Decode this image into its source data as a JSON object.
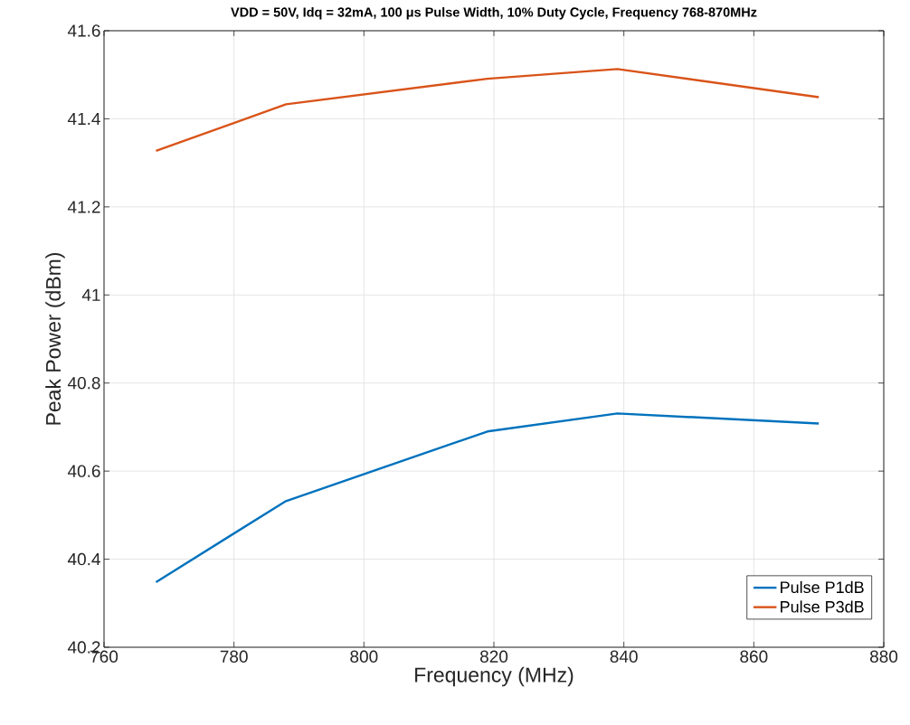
{
  "chart_data": {
    "type": "line",
    "title": "VDD = 50V, Idq = 32mA, 100 μs Pulse Width, 10% Duty Cycle, Frequency 768-870MHz",
    "xlabel": "Frequency (MHz)",
    "ylabel": "Peak Power (dBm)",
    "x": [
      768,
      788,
      819,
      839,
      870
    ],
    "series": [
      {
        "name": "Pulse P1dB",
        "color": "#0072bd",
        "values": [
          40.348,
          40.532,
          40.69,
          40.731,
          40.708
        ]
      },
      {
        "name": "Pulse P3dB",
        "color": "#d95319",
        "values": [
          41.327,
          41.433,
          41.491,
          41.513,
          41.449
        ]
      }
    ],
    "xlim": [
      760,
      880
    ],
    "xticks": [
      760,
      780,
      800,
      820,
      840,
      860,
      880
    ],
    "ylim": [
      40.2,
      41.6
    ],
    "yticks": [
      40.2,
      40.4,
      40.6,
      40.8,
      41,
      41.2,
      41.4,
      41.6
    ],
    "grid": true,
    "legend": "bottom right",
    "marker": "none",
    "line_style": "solid"
  }
}
